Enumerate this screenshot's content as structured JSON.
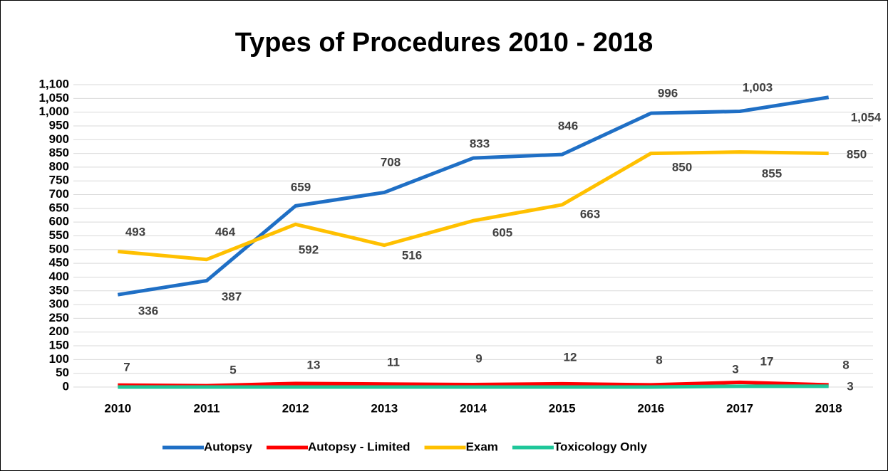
{
  "chart_data": {
    "type": "line",
    "title": "Types of Procedures 2010 - 2018",
    "categories": [
      "2010",
      "2011",
      "2012",
      "2013",
      "2014",
      "2015",
      "2016",
      "2017",
      "2018"
    ],
    "series": [
      {
        "name": "Autopsy",
        "color": "#1f6fc5",
        "values": [
          336,
          387,
          659,
          708,
          833,
          846,
          996,
          1003,
          1054
        ],
        "value_labels": [
          "336",
          "387",
          "659",
          "708",
          "833",
          "846",
          "996",
          "1,003",
          "1,054"
        ]
      },
      {
        "name": "Autopsy - Limited",
        "color": "#ff0000",
        "values": [
          7,
          5,
          13,
          11,
          9,
          12,
          8,
          17,
          8
        ],
        "value_labels": [
          "7",
          "5",
          "13",
          "11",
          "9",
          "12",
          "8",
          "17",
          "8"
        ]
      },
      {
        "name": "Exam",
        "color": "#ffc000",
        "values": [
          493,
          464,
          592,
          516,
          605,
          663,
          850,
          855,
          850
        ],
        "value_labels": [
          "493",
          "464",
          "592",
          "516",
          "605",
          "663",
          "850",
          "855",
          "850"
        ]
      },
      {
        "name": "Toxicology Only",
        "color": "#1fc79a",
        "values": [
          0,
          0,
          0,
          0,
          0,
          0,
          0,
          3,
          3
        ],
        "value_labels": [
          null,
          null,
          null,
          null,
          null,
          null,
          null,
          "3",
          "3"
        ]
      }
    ],
    "ylim": [
      0,
      1100
    ],
    "yticks": [
      0,
      50,
      100,
      150,
      200,
      250,
      300,
      350,
      400,
      450,
      500,
      550,
      600,
      650,
      700,
      750,
      800,
      850,
      900,
      950,
      {
        "value": 1000,
        "label": "1,000"
      },
      {
        "value": 1050,
        "label": "1,050"
      },
      {
        "value": 1100,
        "label": "1,100"
      }
    ],
    "grid": true,
    "legend": "bottom"
  }
}
